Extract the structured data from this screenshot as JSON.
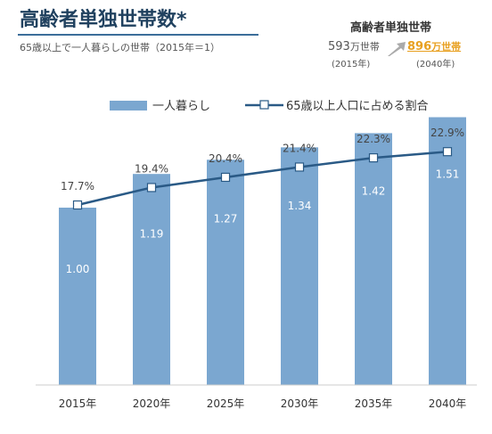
{
  "header": {
    "title": "高齢者単独世帯数*",
    "subtitle": "65歳以上で一人暮らしの世帯（2015年＝1）"
  },
  "inset": {
    "title": "高齢者単独世帯",
    "from_value": "593",
    "from_unit": "万世帯",
    "from_year": "(2015年)",
    "to_value": "896",
    "to_unit": "万世帯",
    "to_year": "(2040年)",
    "to_color": "#e8a020"
  },
  "chart_data": {
    "type": "bar",
    "categories": [
      "2015年",
      "2020年",
      "2025年",
      "2030年",
      "2035年",
      "2040年"
    ],
    "series": [
      {
        "name": "一人暮らし",
        "type": "bar",
        "values": [
          1.0,
          1.19,
          1.27,
          1.34,
          1.42,
          1.51
        ],
        "labels": [
          "1.00",
          "1.19",
          "1.27",
          "1.34",
          "1.42",
          "1.51"
        ],
        "color": "#7ba7d0"
      },
      {
        "name": "65歳以上人口に占める割合",
        "type": "line",
        "values": [
          17.7,
          19.4,
          20.4,
          21.4,
          22.3,
          22.9
        ],
        "labels": [
          "17.7%",
          "19.4%",
          "20.4%",
          "21.4%",
          "22.3%",
          "22.9%"
        ],
        "color": "#2a5a86"
      }
    ],
    "legend_position": "top",
    "grid": false
  }
}
